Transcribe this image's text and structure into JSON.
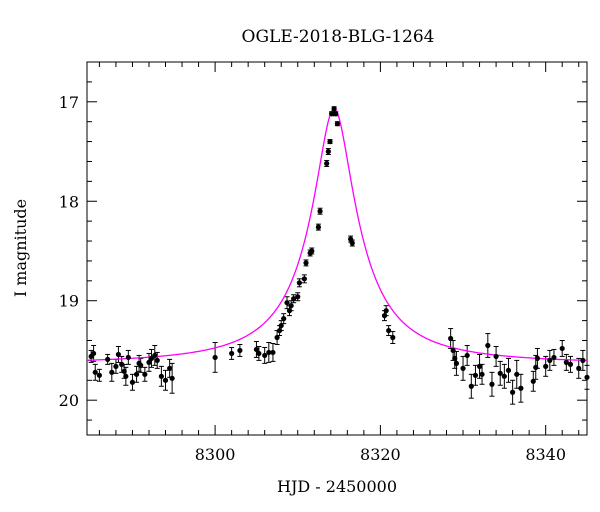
{
  "chart_data": {
    "type": "scatter",
    "title": "OGLE-2018-BLG-1264",
    "xlabel": "HJD - 2450000",
    "ylabel": "I magnitude",
    "xlim": [
      8284.5,
      8345
    ],
    "ylim": [
      20.35,
      16.6
    ],
    "y_inverted": true,
    "grid": false,
    "x_ticks": [
      8300,
      8320,
      8340
    ],
    "y_ticks": [
      17,
      18,
      19,
      20
    ],
    "x_minor_step": 2,
    "y_minor_step": 0.2,
    "colors": {
      "points": "#000000",
      "model": "#ff00ff"
    },
    "model": {
      "name": "",
      "t0": 8314.4,
      "baseline": 19.64,
      "peak": 17.07,
      "tau": 1.9
    },
    "series": [
      {
        "name": "",
        "x": [
          8285.0,
          8285.3,
          8285.5,
          8286.0,
          8287.0,
          8287.5,
          8288.0,
          8288.3,
          8288.7,
          8289.0,
          8289.2,
          8289.5,
          8290.0,
          8290.5,
          8290.8,
          8291.0,
          8291.5,
          8292.0,
          8292.3,
          8292.7,
          8293.0,
          8293.5,
          8294.0,
          8294.5,
          8294.8,
          8300.0,
          8302.0,
          8303.0,
          8305.0,
          8305.3,
          8306.0,
          8306.5,
          8307.0,
          8307.5,
          8307.8,
          8308.0,
          8308.3,
          8308.7,
          8309.0,
          8309.2,
          8309.5,
          8310.0,
          8310.2,
          8310.8,
          8311.0,
          8311.5,
          8311.7,
          8312.5,
          8312.7,
          8313.5,
          8313.7,
          8313.9,
          8314.1,
          8314.4,
          8314.6,
          8314.8,
          8316.4,
          8316.6,
          8320.5,
          8320.7,
          8321.0,
          8321.5,
          8328.5,
          8328.8,
          8329.0,
          8329.2,
          8330.0,
          8330.5,
          8331.0,
          8331.5,
          8332.0,
          8332.3,
          8333.0,
          8333.5,
          8334.0,
          8334.5,
          8335.0,
          8335.5,
          8336.0,
          8336.5,
          8337.0,
          8338.5,
          8338.8,
          8339.0,
          8340.0,
          8340.5,
          8341.0,
          8342.0,
          8342.5,
          8343.0,
          8344.0,
          8344.5,
          8345.0
        ],
        "y": [
          19.56,
          19.53,
          19.72,
          19.75,
          19.59,
          19.72,
          19.66,
          19.54,
          19.64,
          19.71,
          19.76,
          19.57,
          19.82,
          19.74,
          19.63,
          19.65,
          19.74,
          19.62,
          19.58,
          19.55,
          19.6,
          19.76,
          19.8,
          19.68,
          19.78,
          19.57,
          19.53,
          19.5,
          19.49,
          19.53,
          19.55,
          19.52,
          19.52,
          19.37,
          19.3,
          19.25,
          19.18,
          19.02,
          19.1,
          19.05,
          18.98,
          18.96,
          18.82,
          18.78,
          18.62,
          18.52,
          18.5,
          18.26,
          18.1,
          17.62,
          17.5,
          17.4,
          17.12,
          17.07,
          17.12,
          17.22,
          18.38,
          18.42,
          19.15,
          19.1,
          19.3,
          19.37,
          19.38,
          19.5,
          19.58,
          19.63,
          19.68,
          19.55,
          19.86,
          19.75,
          19.66,
          19.74,
          19.45,
          19.84,
          19.56,
          19.73,
          19.76,
          19.7,
          19.92,
          19.74,
          19.88,
          19.81,
          19.67,
          19.58,
          19.66,
          19.6,
          19.57,
          19.48,
          19.62,
          19.64,
          19.68,
          19.6,
          19.77
        ],
        "err": [
          0.06,
          0.08,
          0.08,
          0.06,
          0.05,
          0.09,
          0.07,
          0.08,
          0.08,
          0.07,
          0.09,
          0.07,
          0.08,
          0.08,
          0.08,
          0.07,
          0.07,
          0.09,
          0.09,
          0.1,
          0.08,
          0.1,
          0.1,
          0.09,
          0.15,
          0.15,
          0.06,
          0.06,
          0.08,
          0.07,
          0.08,
          0.1,
          0.09,
          0.07,
          0.05,
          0.05,
          0.05,
          0.06,
          0.05,
          0.05,
          0.04,
          0.04,
          0.04,
          0.04,
          0.03,
          0.03,
          0.03,
          0.03,
          0.03,
          0.03,
          0.03,
          0.02,
          0.02,
          0.02,
          0.02,
          0.02,
          0.03,
          0.03,
          0.05,
          0.05,
          0.05,
          0.06,
          0.1,
          0.1,
          0.1,
          0.12,
          0.12,
          0.1,
          0.12,
          0.1,
          0.12,
          0.1,
          0.12,
          0.12,
          0.1,
          0.12,
          0.12,
          0.12,
          0.12,
          0.14,
          0.14,
          0.1,
          0.12,
          0.1,
          0.1,
          0.1,
          0.08,
          0.08,
          0.08,
          0.08,
          0.1,
          0.1,
          0.12
        ]
      }
    ]
  }
}
